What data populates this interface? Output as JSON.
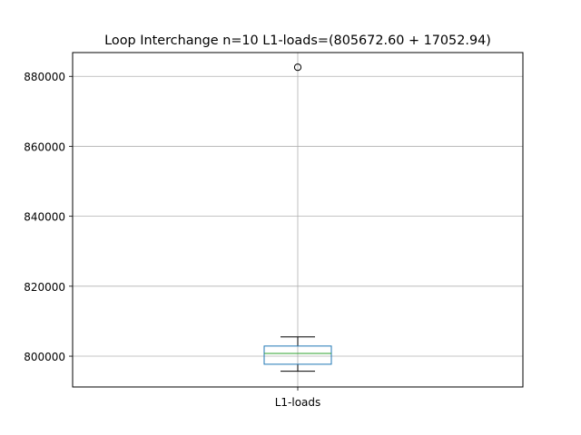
{
  "chart_data": {
    "type": "box",
    "title": "Loop Interchange n=10  L1-loads=(805672.60 + 17052.94)",
    "xlabel": "",
    "ylabel": "",
    "categories": [
      "L1-loads"
    ],
    "ylim": [
      791200,
      886800
    ],
    "yticks": [
      800000,
      820000,
      840000,
      860000,
      880000
    ],
    "ytick_labels": [
      "800000",
      "820000",
      "840000",
      "860000",
      "880000"
    ],
    "grid": true,
    "boxes": [
      {
        "category": "L1-loads",
        "whisker_low": 795700,
        "q1": 797700,
        "median": 800800,
        "q3": 802900,
        "whisker_high": 805500,
        "outliers": [
          882600
        ]
      }
    ],
    "colors": {
      "box": "#1f77b4",
      "median": "#2ca02c",
      "whisker": "#000000",
      "grid": "#b0b0b0",
      "outlier": "#000000"
    }
  }
}
